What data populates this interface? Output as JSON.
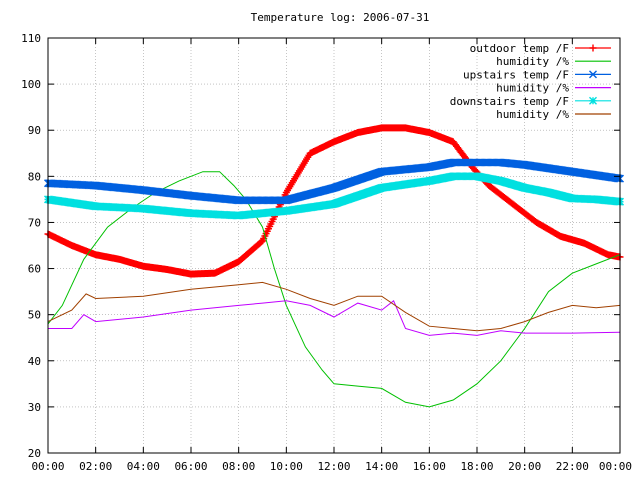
{
  "chart_data": {
    "type": "line",
    "title": "Temperature log: 2006-07-31",
    "xlabel": "",
    "ylabel": "",
    "xlim": [
      0,
      24
    ],
    "ylim": [
      20,
      110
    ],
    "x_ticks": [
      "00:00",
      "02:00",
      "04:00",
      "06:00",
      "08:00",
      "10:00",
      "12:00",
      "14:00",
      "16:00",
      "18:00",
      "20:00",
      "22:00",
      "00:00"
    ],
    "y_ticks": [
      "20",
      "30",
      "40",
      "50",
      "60",
      "70",
      "80",
      "90",
      "100",
      "110"
    ],
    "grid": true,
    "legend_position": "top-right",
    "series": [
      {
        "name": "outdoor temp /F",
        "color": "#ff0000",
        "marker": "plus",
        "points": [
          [
            0,
            67.5
          ],
          [
            1,
            65
          ],
          [
            2,
            63
          ],
          [
            3,
            62
          ],
          [
            4,
            60.5
          ],
          [
            5,
            59.8
          ],
          [
            6,
            58.8
          ],
          [
            7,
            59
          ],
          [
            8,
            61.5
          ],
          [
            9,
            66
          ],
          [
            10,
            76.5
          ],
          [
            11,
            85
          ],
          [
            12,
            87.5
          ],
          [
            13,
            89.5
          ],
          [
            14,
            90.5
          ],
          [
            15,
            90.5
          ],
          [
            16,
            89.5
          ],
          [
            17,
            87.5
          ],
          [
            17.8,
            82
          ],
          [
            18.5,
            78
          ],
          [
            19.5,
            74
          ],
          [
            20.5,
            70
          ],
          [
            21.5,
            67
          ],
          [
            22.5,
            65.5
          ],
          [
            23.5,
            63
          ],
          [
            24,
            62.5
          ]
        ]
      },
      {
        "name": "humidity /%",
        "color": "#00c000",
        "marker": "none",
        "points": [
          [
            0,
            48
          ],
          [
            0.6,
            52
          ],
          [
            1.5,
            62
          ],
          [
            2.5,
            69
          ],
          [
            3.5,
            73
          ],
          [
            4.5,
            76.5
          ],
          [
            5.5,
            79
          ],
          [
            6.5,
            81
          ],
          [
            7.2,
            81
          ],
          [
            7.8,
            78
          ],
          [
            8.3,
            75
          ],
          [
            9,
            69
          ],
          [
            9.5,
            60
          ],
          [
            10,
            52
          ],
          [
            10.8,
            43
          ],
          [
            11.5,
            38
          ],
          [
            12,
            35
          ],
          [
            13,
            34.5
          ],
          [
            14,
            34
          ],
          [
            15,
            31
          ],
          [
            16,
            30
          ],
          [
            17,
            31.5
          ],
          [
            18,
            35
          ],
          [
            19,
            40
          ],
          [
            20,
            47
          ],
          [
            21,
            55
          ],
          [
            22,
            59
          ],
          [
            23,
            61
          ],
          [
            24,
            63
          ]
        ]
      },
      {
        "name": "upstairs temp /F",
        "color": "#0060e0",
        "marker": "cross",
        "points": [
          [
            0,
            78.5
          ],
          [
            2,
            78
          ],
          [
            4,
            77
          ],
          [
            6,
            75.8
          ],
          [
            8,
            74.8
          ],
          [
            10,
            74.8
          ],
          [
            12,
            77.5
          ],
          [
            14,
            81
          ],
          [
            16,
            82
          ],
          [
            17,
            83
          ],
          [
            18,
            83
          ],
          [
            19,
            83
          ],
          [
            20,
            82.5
          ],
          [
            22,
            81
          ],
          [
            24,
            79.5
          ]
        ]
      },
      {
        "name": "humidity /%",
        "color": "#c000ff",
        "marker": "none",
        "points": [
          [
            0,
            47
          ],
          [
            1,
            47
          ],
          [
            1.5,
            50
          ],
          [
            2,
            48.5
          ],
          [
            4,
            49.5
          ],
          [
            6,
            51
          ],
          [
            8,
            52
          ],
          [
            9,
            52.5
          ],
          [
            10,
            53
          ],
          [
            11,
            52
          ],
          [
            12,
            49.5
          ],
          [
            13,
            52.5
          ],
          [
            14,
            51
          ],
          [
            14.5,
            53
          ],
          [
            15,
            47
          ],
          [
            16,
            45.5
          ],
          [
            17,
            46
          ],
          [
            18,
            45.5
          ],
          [
            19,
            46.5
          ],
          [
            20,
            46
          ],
          [
            22,
            46
          ],
          [
            24,
            46.2
          ]
        ]
      },
      {
        "name": "downstairs temp /F",
        "color": "#00e0e0",
        "marker": "star",
        "points": [
          [
            0,
            75
          ],
          [
            2,
            73.5
          ],
          [
            4,
            73
          ],
          [
            6,
            72
          ],
          [
            8,
            71.5
          ],
          [
            10,
            72.5
          ],
          [
            12,
            74
          ],
          [
            14,
            77.5
          ],
          [
            16,
            79
          ],
          [
            17,
            80
          ],
          [
            18,
            80
          ],
          [
            19,
            79
          ],
          [
            20,
            77.5
          ],
          [
            21,
            76.5
          ],
          [
            22,
            75.2
          ],
          [
            23,
            75
          ],
          [
            24,
            74.5
          ]
        ]
      },
      {
        "name": "humidity /%",
        "color": "#a04000",
        "marker": "none",
        "points": [
          [
            0,
            48.5
          ],
          [
            1,
            51
          ],
          [
            1.6,
            54.5
          ],
          [
            2,
            53.5
          ],
          [
            4,
            54
          ],
          [
            6,
            55.5
          ],
          [
            8,
            56.5
          ],
          [
            9,
            57
          ],
          [
            10,
            55.5
          ],
          [
            11,
            53.5
          ],
          [
            12,
            52
          ],
          [
            13,
            54
          ],
          [
            14,
            54
          ],
          [
            15,
            50.5
          ],
          [
            16,
            47.5
          ],
          [
            17,
            47
          ],
          [
            18,
            46.5
          ],
          [
            19,
            47
          ],
          [
            20,
            48.5
          ],
          [
            21,
            50.5
          ],
          [
            22,
            52
          ],
          [
            23,
            51.5
          ],
          [
            24,
            52
          ]
        ]
      }
    ]
  }
}
